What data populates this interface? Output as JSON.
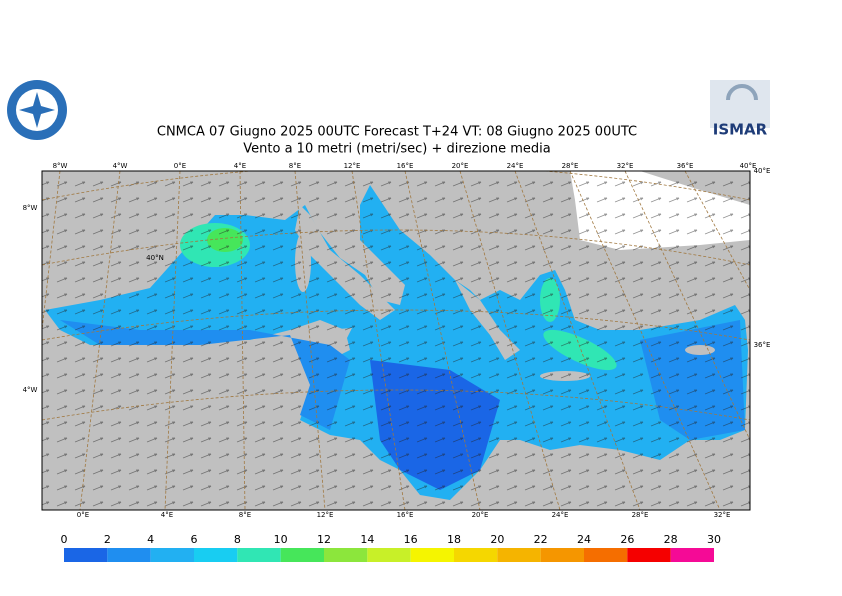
{
  "header": {
    "title": "CNMCA 07   Giugno  2025 00UTC Forecast T+24 VT: 08   Giugno  2025 00UTC",
    "subtitle": "Vento a 10 metri (metri/sec) + direzione media"
  },
  "logo": {
    "right_text": "ISMAR"
  },
  "map": {
    "top_labels": [
      "8°W",
      "4°W",
      "0°E",
      "4°E",
      "8°E",
      "12°E",
      "16°E",
      "20°E",
      "24°E",
      "28°E",
      "32°E",
      "36°E",
      "40°E"
    ],
    "bottom_labels": [
      "0°E",
      "4°E",
      "8°E",
      "12°E",
      "16°E",
      "20°E",
      "24°E",
      "28°E",
      "32°E"
    ],
    "left_labels": [
      "8°W",
      "40°N",
      "4°W"
    ],
    "right_labels": [
      "40°E",
      "36°E"
    ]
  },
  "colorbar": {
    "ticks": [
      0,
      2,
      4,
      6,
      8,
      10,
      12,
      14,
      16,
      18,
      20,
      22,
      24,
      26,
      28,
      30
    ],
    "colors": [
      "#1a66e6",
      "#1f8ef0",
      "#22b0f2",
      "#18cdf2",
      "#30e6b4",
      "#46e65a",
      "#8ce63c",
      "#c8f028",
      "#f5f500",
      "#f5d700",
      "#f5b400",
      "#f59600",
      "#f56e00",
      "#f50000",
      "#f50a96"
    ]
  }
}
